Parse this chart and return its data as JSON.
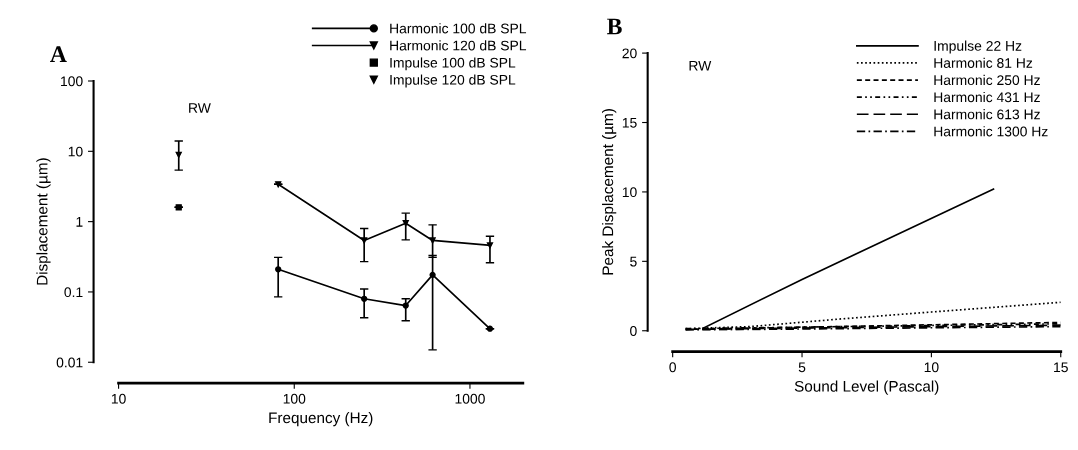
{
  "chart_data": [
    {
      "type": "line",
      "title": "A",
      "xlabel": "Frequency (Hz)",
      "ylabel": "Displacement (µm)",
      "log": "xy",
      "xlim": [
        10,
        2000
      ],
      "ylim": [
        0.01,
        100
      ],
      "xticks": [
        10,
        100,
        1000
      ],
      "yticks": [
        0.01,
        0.1,
        1,
        10,
        100
      ],
      "grid": false,
      "legend": "top right",
      "annotations": [
        "RW"
      ],
      "series": [
        {
          "name": "Harmonic 100 dB SPL",
          "type": "line",
          "color": "#000000",
          "marker": "circle",
          "x": [
            81,
            250,
            431,
            613,
            1300
          ],
          "values": [
            0.21,
            0.08,
            0.064,
            0.175,
            0.03
          ],
          "errors": [
            [
              0.085,
              0.31
            ],
            [
              0.043,
              0.11
            ],
            [
              0.039,
              0.08
            ],
            [
              0.015,
              0.33
            ],
            null
          ]
        },
        {
          "name": "Harmonic 120 dB SPL",
          "type": "line",
          "color": "#000000",
          "marker": "triangle",
          "x": [
            81,
            250,
            431,
            613,
            1300
          ],
          "values": [
            3.4,
            0.54,
            0.95,
            0.54,
            0.46
          ],
          "errors": [
            null,
            [
              0.27,
              0.8
            ],
            [
              0.55,
              1.32
            ],
            [
              0.31,
              0.9
            ],
            [
              0.26,
              0.62
            ]
          ]
        },
        {
          "name": "Impulse 100 dB SPL",
          "type": "scatter",
          "color": "#000000",
          "marker": "square",
          "x": [
            22
          ],
          "values": [
            1.6
          ],
          "errors": [
            null
          ]
        },
        {
          "name": "Impulse 120 dB SPL",
          "type": "scatter",
          "color": "#000000",
          "marker": "triangle",
          "x": [
            22
          ],
          "values": [
            8.9
          ],
          "errors": [
            [
              5.4,
              14
            ]
          ]
        }
      ]
    },
    {
      "type": "line",
      "title": "B",
      "xlabel": "Sound Level (Pascal)",
      "ylabel": "Peak Displacement (µm)",
      "xlim": [
        0,
        15
      ],
      "ylim": [
        0,
        20
      ],
      "xticks": [
        0,
        5,
        10,
        15
      ],
      "yticks": [
        0,
        5,
        10,
        15,
        20
      ],
      "grid": false,
      "legend": "top right",
      "marker": "none",
      "annotations": [
        "RW"
      ],
      "series": [
        {
          "name": "Impulse 22 Hz",
          "color": "#000000",
          "line_style": "solid",
          "x": [
            1.2,
            5,
            12.4
          ],
          "values": [
            0.2,
            3.7,
            10.2
          ]
        },
        {
          "name": "Harmonic 81 Hz",
          "color": "#000000",
          "line_style": "dotted",
          "x": [
            0.5,
            3,
            6.5,
            10,
            15
          ],
          "values": [
            0.15,
            0.3,
            0.85,
            1.35,
            2.05
          ]
        },
        {
          "name": "Harmonic 250 Hz",
          "color": "#000000",
          "line_style": "dashed",
          "x": [
            0.5,
            15
          ],
          "values": [
            0.1,
            0.6
          ]
        },
        {
          "name": "Harmonic 431 Hz",
          "color": "#000000",
          "line_style": "dashdotdot",
          "x": [
            0.5,
            15
          ],
          "values": [
            0.15,
            0.5
          ]
        },
        {
          "name": "Harmonic 613 Hz",
          "color": "#000000",
          "line_style": "longdash",
          "x": [
            0.5,
            15
          ],
          "values": [
            0.1,
            0.4
          ]
        },
        {
          "name": "Harmonic 1300 Hz",
          "color": "#000000",
          "line_style": "dashdot",
          "x": [
            0.5,
            15
          ],
          "values": [
            0.05,
            0.3
          ]
        }
      ]
    }
  ]
}
